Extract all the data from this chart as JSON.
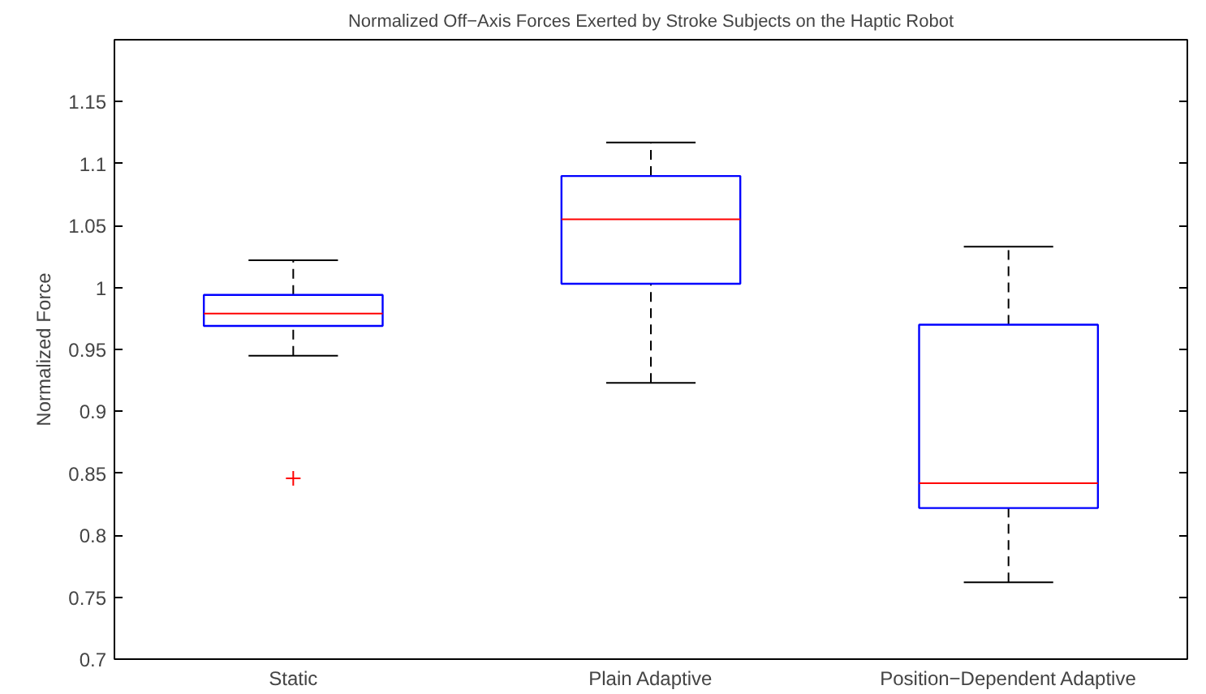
{
  "chart_data": {
    "type": "box",
    "title": "Normalized Off−Axis Forces Exerted by Stroke Subjects on the Haptic Robot",
    "ylabel": "Normalized Force",
    "categories": [
      "Static",
      "Plain Adaptive",
      "Position−Dependent Adaptive"
    ],
    "boxes": [
      {
        "low": 0.945,
        "q1": 0.969,
        "median": 0.979,
        "q3": 0.994,
        "high": 1.022,
        "outliers": [
          0.846
        ]
      },
      {
        "low": 0.923,
        "q1": 1.003,
        "median": 1.055,
        "q3": 1.09,
        "high": 1.117
      },
      {
        "low": 0.762,
        "q1": 0.822,
        "median": 0.842,
        "q3": 0.97,
        "high": 1.033
      }
    ],
    "ylim": [
      0.7,
      1.2
    ],
    "yticks": [
      0.7,
      0.75,
      0.8,
      0.85,
      0.9,
      0.95,
      1,
      1.05,
      1.1,
      1.15
    ],
    "grid": false
  }
}
